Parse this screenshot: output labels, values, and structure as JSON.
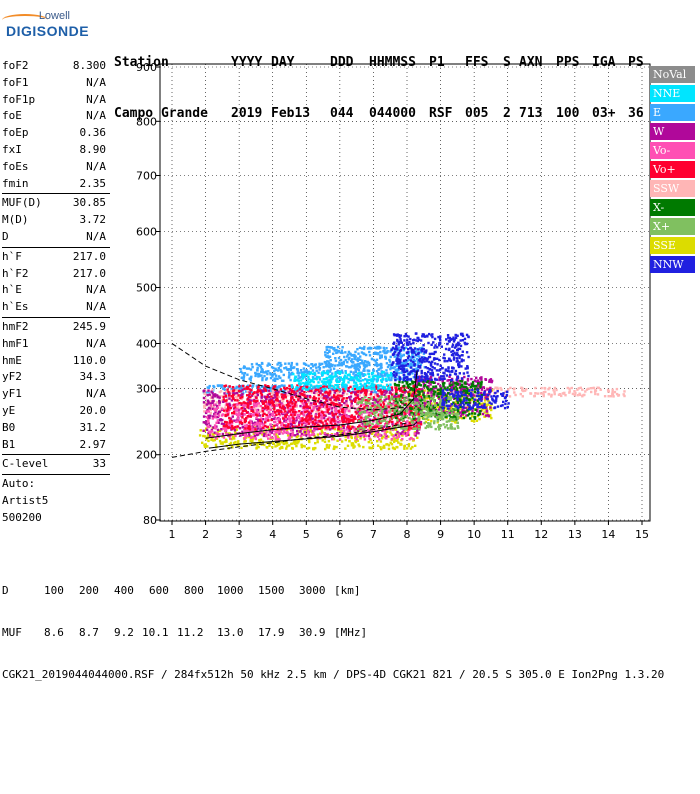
{
  "logo": {
    "line1": "Lowell",
    "line2": "DIGISONDE"
  },
  "header": {
    "labels": [
      "Station",
      "YYYY",
      "DAY",
      "DDD",
      "HHMMSS",
      "P1",
      "FFS",
      "S",
      "AXN",
      "PPS",
      "IGA",
      "PS"
    ],
    "values": [
      "Campo Grande",
      "2019",
      "Feb13",
      "044",
      "044000",
      "RSF",
      "005",
      "2",
      "713",
      "100",
      "03+",
      "36"
    ]
  },
  "params": [
    {
      "k": "foF2",
      "v": "8.300"
    },
    {
      "k": "foF1",
      "v": "N/A"
    },
    {
      "k": "foF1p",
      "v": "N/A"
    },
    {
      "k": "foE",
      "v": "N/A"
    },
    {
      "k": "foEp",
      "v": "0.36"
    },
    {
      "k": "fxI",
      "v": "8.90"
    },
    {
      "k": "foEs",
      "v": "N/A"
    },
    {
      "k": "fmin",
      "v": "2.35"
    },
    {
      "sep": true
    },
    {
      "k": "MUF(D)",
      "v": "30.85"
    },
    {
      "k": "M(D)",
      "v": "3.72"
    },
    {
      "k": "D",
      "v": "N/A"
    },
    {
      "sep": true
    },
    {
      "k": "h`F",
      "v": "217.0"
    },
    {
      "k": "h`F2",
      "v": "217.0"
    },
    {
      "k": "h`E",
      "v": "N/A"
    },
    {
      "k": "h`Es",
      "v": "N/A"
    },
    {
      "sep": true
    },
    {
      "k": "hmF2",
      "v": "245.9"
    },
    {
      "k": "hmF1",
      "v": "N/A"
    },
    {
      "k": "hmE",
      "v": "110.0"
    },
    {
      "k": "yF2",
      "v": "34.3"
    },
    {
      "k": "yF1",
      "v": "N/A"
    },
    {
      "k": "yE",
      "v": "20.0"
    },
    {
      "k": "B0",
      "v": "31.2"
    },
    {
      "k": "B1",
      "v": "2.97"
    },
    {
      "sep": true
    },
    {
      "k": "C-level",
      "v": "33"
    },
    {
      "sep": true
    },
    {
      "k": "Auto:",
      "v": ""
    },
    {
      "k": "Artist5",
      "v": ""
    },
    {
      "k": "500200",
      "v": ""
    }
  ],
  "legend": [
    {
      "label": "NoVal",
      "color": "#8c8c8c"
    },
    {
      "label": "NNE",
      "color": "#00e5ff"
    },
    {
      "label": "E",
      "color": "#3aa8ff"
    },
    {
      "label": "W",
      "color": "#b0089a"
    },
    {
      "label": "Vo-",
      "color": "#ff4fb4"
    },
    {
      "label": "Vo+",
      "color": "#ff0030"
    },
    {
      "label": "SSW",
      "color": "#ffb6b6"
    },
    {
      "label": "X-",
      "color": "#007a00"
    },
    {
      "label": "X+",
      "color": "#80c060"
    },
    {
      "label": "SSE",
      "color": "#dcdc00"
    },
    {
      "label": "NNW",
      "color": "#2020e0"
    }
  ],
  "bottom": {
    "d_label": "D",
    "d_values": [
      "100",
      "200",
      "400",
      "600",
      "800",
      "1000",
      "1500",
      "3000",
      "[km]"
    ],
    "muf_label": "MUF",
    "muf_values": [
      "8.6",
      "8.7",
      "9.2",
      "10.1",
      "11.2",
      "13.0",
      "17.9",
      "30.9",
      "[MHz]"
    ],
    "footer": "CGK21_2019044044000.RSF / 284fx512h 50 kHz 2.5 km / DPS-4D CGK21 821 / 20.5 S 305.0 E Ion2Png 1.3.20"
  },
  "chart_data": {
    "type": "scatter",
    "x_ticks": [
      "1",
      "2",
      "3",
      "4",
      "5",
      "6",
      "7",
      "8",
      "9",
      "10",
      "11",
      "12",
      "13",
      "14",
      "15"
    ],
    "y_ticks": [
      "80",
      "200",
      "300",
      "400",
      "500",
      "600",
      "700",
      "800",
      "900"
    ],
    "xlim": [
      0.85,
      15.1
    ],
    "ylim_label_map": {
      "y_tick_values": [
        80,
        200,
        300,
        400,
        500,
        600,
        700,
        800,
        900
      ]
    },
    "grid": true,
    "legend_placement": "right",
    "series": [
      {
        "name": "E",
        "color": "#3aa8ff",
        "clusters": [
          {
            "x": [
              1.9,
              7.5
            ],
            "y": [
              295,
              310
            ]
          },
          {
            "x": [
              3.0,
              8.3
            ],
            "y": [
              320,
              360
            ]
          },
          {
            "x": [
              5.5,
              8.5
            ],
            "y": [
              350,
              395
            ]
          }
        ]
      },
      {
        "name": "SSW",
        "color": "#ffb6b6",
        "clusters": [
          {
            "x": [
              1.9,
              8.0
            ],
            "y": [
              265,
              300
            ]
          },
          {
            "x": [
              8.5,
              14.5
            ],
            "y": [
              290,
              305
            ]
          }
        ]
      },
      {
        "name": "SSE",
        "color": "#dcdc00",
        "clusters": [
          {
            "x": [
              1.8,
              8.3
            ],
            "y": [
              210,
              245
            ]
          },
          {
            "x": [
              8.0,
              10.5
            ],
            "y": [
              250,
              300
            ]
          }
        ]
      },
      {
        "name": "W",
        "color": "#b0089a",
        "clusters": [
          {
            "x": [
              1.9,
              8.4
            ],
            "y": [
              230,
              300
            ]
          },
          {
            "x": [
              8.2,
              10.5
            ],
            "y": [
              260,
              330
            ]
          }
        ]
      },
      {
        "name": "Vo-",
        "color": "#ff4fb4",
        "clusters": [
          {
            "x": [
              2.0,
              8.2
            ],
            "y": [
              225,
              280
            ]
          }
        ]
      },
      {
        "name": "Vo+",
        "color": "#ff0030",
        "clusters": [
          {
            "x": [
              2.5,
              8.4
            ],
            "y": [
              240,
              310
            ]
          }
        ]
      },
      {
        "name": "X-",
        "color": "#007a00",
        "clusters": [
          {
            "x": [
              7.6,
              10.2
            ],
            "y": [
              255,
              320
            ]
          }
        ]
      },
      {
        "name": "X+",
        "color": "#80c060",
        "clusters": [
          {
            "x": [
              6.5,
              9.5
            ],
            "y": [
              240,
              290
            ]
          }
        ]
      },
      {
        "name": "NNW",
        "color": "#2020e0",
        "clusters": [
          {
            "x": [
              9.0,
              11.0
            ],
            "y": [
              270,
              300
            ]
          },
          {
            "x": [
              7.5,
              9.8
            ],
            "y": [
              320,
              420
            ]
          }
        ]
      },
      {
        "name": "NNE",
        "color": "#00e5ff",
        "clusters": [
          {
            "x": [
              4.5,
              7.5
            ],
            "y": [
              300,
              340
            ]
          }
        ]
      }
    ],
    "lines": [
      {
        "name": "upper",
        "style": "dashed",
        "x": [
          1.0,
          2.0,
          3.0,
          4.0,
          5.0,
          6.0,
          7.0,
          8.0
        ],
        "y": [
          400,
          350,
          320,
          300,
          285,
          272,
          268,
          272
        ]
      },
      {
        "name": "lower",
        "style": "dashed",
        "x": [
          1.0,
          2.0,
          3.0,
          4.0,
          5.0,
          6.0,
          7.0,
          8.0
        ],
        "y": [
          195,
          205,
          212,
          218,
          225,
          230,
          238,
          248
        ]
      },
      {
        "name": "profile",
        "style": "solid",
        "x": [
          2.1,
          3.0,
          4.0,
          5.0,
          6.0,
          7.0,
          7.6,
          8.2,
          8.3
        ],
        "y": [
          210,
          216,
          220,
          224,
          228,
          235,
          240,
          245,
          250
        ]
      },
      {
        "name": "trace",
        "style": "solid",
        "x": [
          2.0,
          3.0,
          4.0,
          5.0,
          6.0,
          7.0,
          7.8,
          8.2,
          8.3
        ],
        "y": [
          225,
          232,
          238,
          242,
          245,
          252,
          262,
          285,
          340
        ]
      }
    ]
  }
}
